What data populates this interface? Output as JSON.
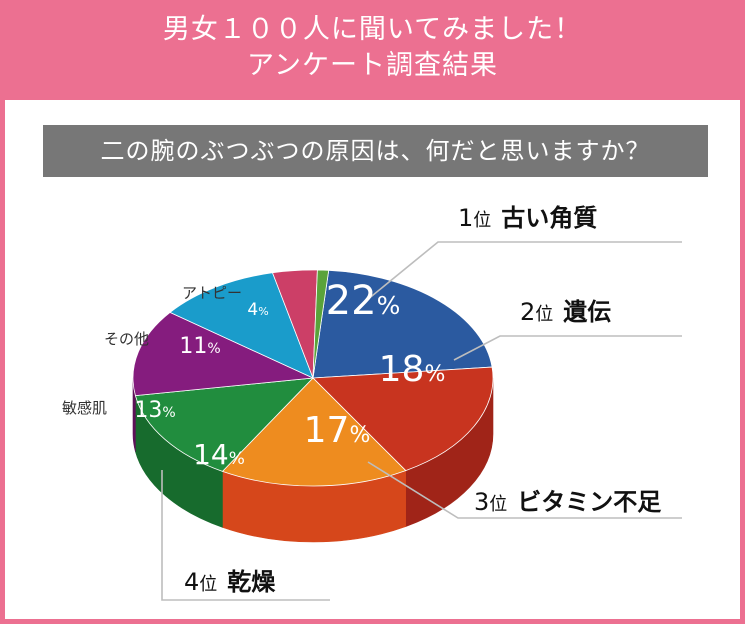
{
  "header": {
    "line1": "男女１００人に聞いてみました！",
    "line2": "アンケート調査結果"
  },
  "question": "二の腕のぶつぶつの原因は、何だと思いますか？",
  "colors": {
    "frame": "#ec7091",
    "question_bg": "#777777"
  },
  "chart_data": {
    "type": "pie",
    "style": "3d",
    "title": "二の腕のぶつぶつの原因は、何だと思いますか？",
    "slices": [
      {
        "label": "古い角質",
        "value": 22,
        "display": "22%",
        "rank": "1位",
        "color": "#2b5aa0",
        "side": "#1c3f76"
      },
      {
        "label": "遺伝",
        "value": 18,
        "display": "18%",
        "rank": "2位",
        "color": "#c8341f",
        "side": "#a02418"
      },
      {
        "label": "ビタミン不足",
        "value": 17,
        "display": "17%",
        "rank": "3位",
        "color": "#ee8c1f",
        "side": "#d6471b"
      },
      {
        "label": "乾燥",
        "value": 14,
        "display": "14%",
        "rank": "4位",
        "color": "#218d3e",
        "side": "#176b2d"
      },
      {
        "label": "敏感肌",
        "value": 13,
        "display": "13%",
        "color": "#851c7e",
        "side": "#5e1059"
      },
      {
        "label": "その他",
        "value": 11,
        "display": "11%",
        "color": "#1a9ccb",
        "side": "#137aa0"
      },
      {
        "label": "アトピー",
        "value": 4,
        "display": "4%",
        "color": "#cc3f67",
        "side": "#9e2d4e"
      },
      {
        "label": "",
        "value": 1,
        "display": "",
        "color": "#5aa33a",
        "side": "#417a28"
      }
    ]
  }
}
